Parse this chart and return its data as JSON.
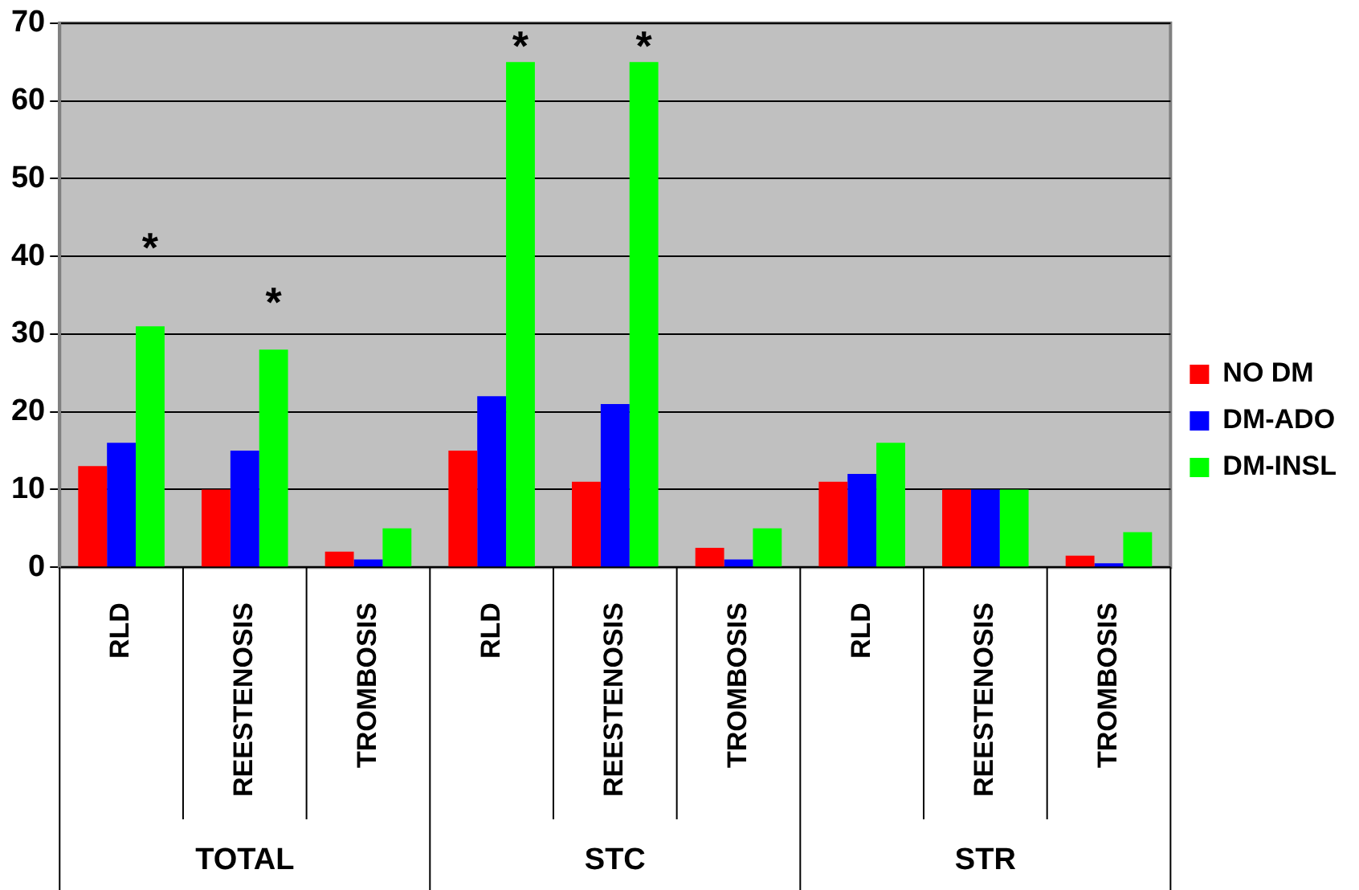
{
  "chart_data": {
    "type": "bar",
    "categories": [
      "RLD",
      "REESTENOSIS",
      "TROMBOSIS",
      "RLD",
      "REESTENOSIS",
      "TROMBOSIS",
      "RLD",
      "REESTENOSIS",
      "TROMBOSIS"
    ],
    "series": [
      {
        "name": "NO DM",
        "color": "#ff0000",
        "values": [
          13,
          10,
          2,
          15,
          11,
          2.5,
          11,
          10,
          1.5
        ]
      },
      {
        "name": "DM-ADO",
        "color": "#0000ff",
        "values": [
          16,
          15,
          1,
          22,
          21,
          1,
          12,
          10,
          0.5
        ]
      },
      {
        "name": "DM-INSL",
        "color": "#00ff00",
        "values": [
          31,
          28,
          5,
          65,
          65,
          5,
          16,
          10,
          4.5
        ]
      }
    ],
    "ylim": [
      0,
      70
    ],
    "yticks": [
      0,
      10,
      20,
      30,
      40,
      50,
      60,
      70
    ],
    "grid": "y",
    "legend": "right",
    "annotations": [
      "*",
      "*",
      "*",
      "*",
      "TOTAL",
      "STC",
      "STR"
    ]
  }
}
